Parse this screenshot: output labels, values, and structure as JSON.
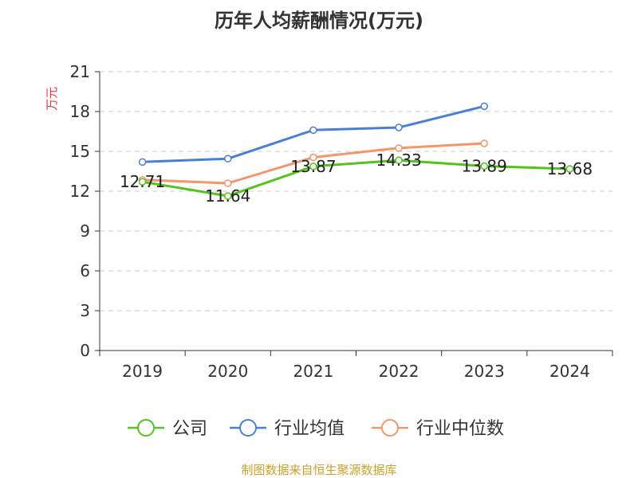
{
  "chart_data": {
    "type": "line",
    "title": "历年人均薪酬情况(万元)",
    "ylabel": "万元",
    "ylim": [
      0,
      21
    ],
    "yticks": [
      0,
      3,
      6,
      9,
      12,
      15,
      18,
      21
    ],
    "categories": [
      "2019",
      "2020",
      "2021",
      "2022",
      "2023",
      "2024"
    ],
    "grid": true,
    "legend_position": "bottom",
    "series": [
      {
        "name": "公司",
        "color": "#52c41a",
        "values": [
          12.71,
          11.64,
          13.87,
          14.33,
          13.89,
          13.68
        ],
        "labels": [
          "12.71",
          "11.64",
          "13.87",
          "14.33",
          "13.89",
          "13.68"
        ]
      },
      {
        "name": "行业均值",
        "color": "#4a7fd6",
        "values": [
          14.2,
          14.45,
          16.6,
          16.8,
          18.4,
          null
        ]
      },
      {
        "name": "行业中位数",
        "color": "#f5956a",
        "values": [
          12.85,
          12.6,
          14.55,
          15.25,
          15.6,
          null
        ]
      }
    ]
  },
  "colors": {
    "ylabel": "#e03c3c",
    "footer": "#c9a227",
    "axis": "#333333",
    "grid": "#cccccc"
  },
  "footer": "制图数据来自恒生聚源数据库"
}
